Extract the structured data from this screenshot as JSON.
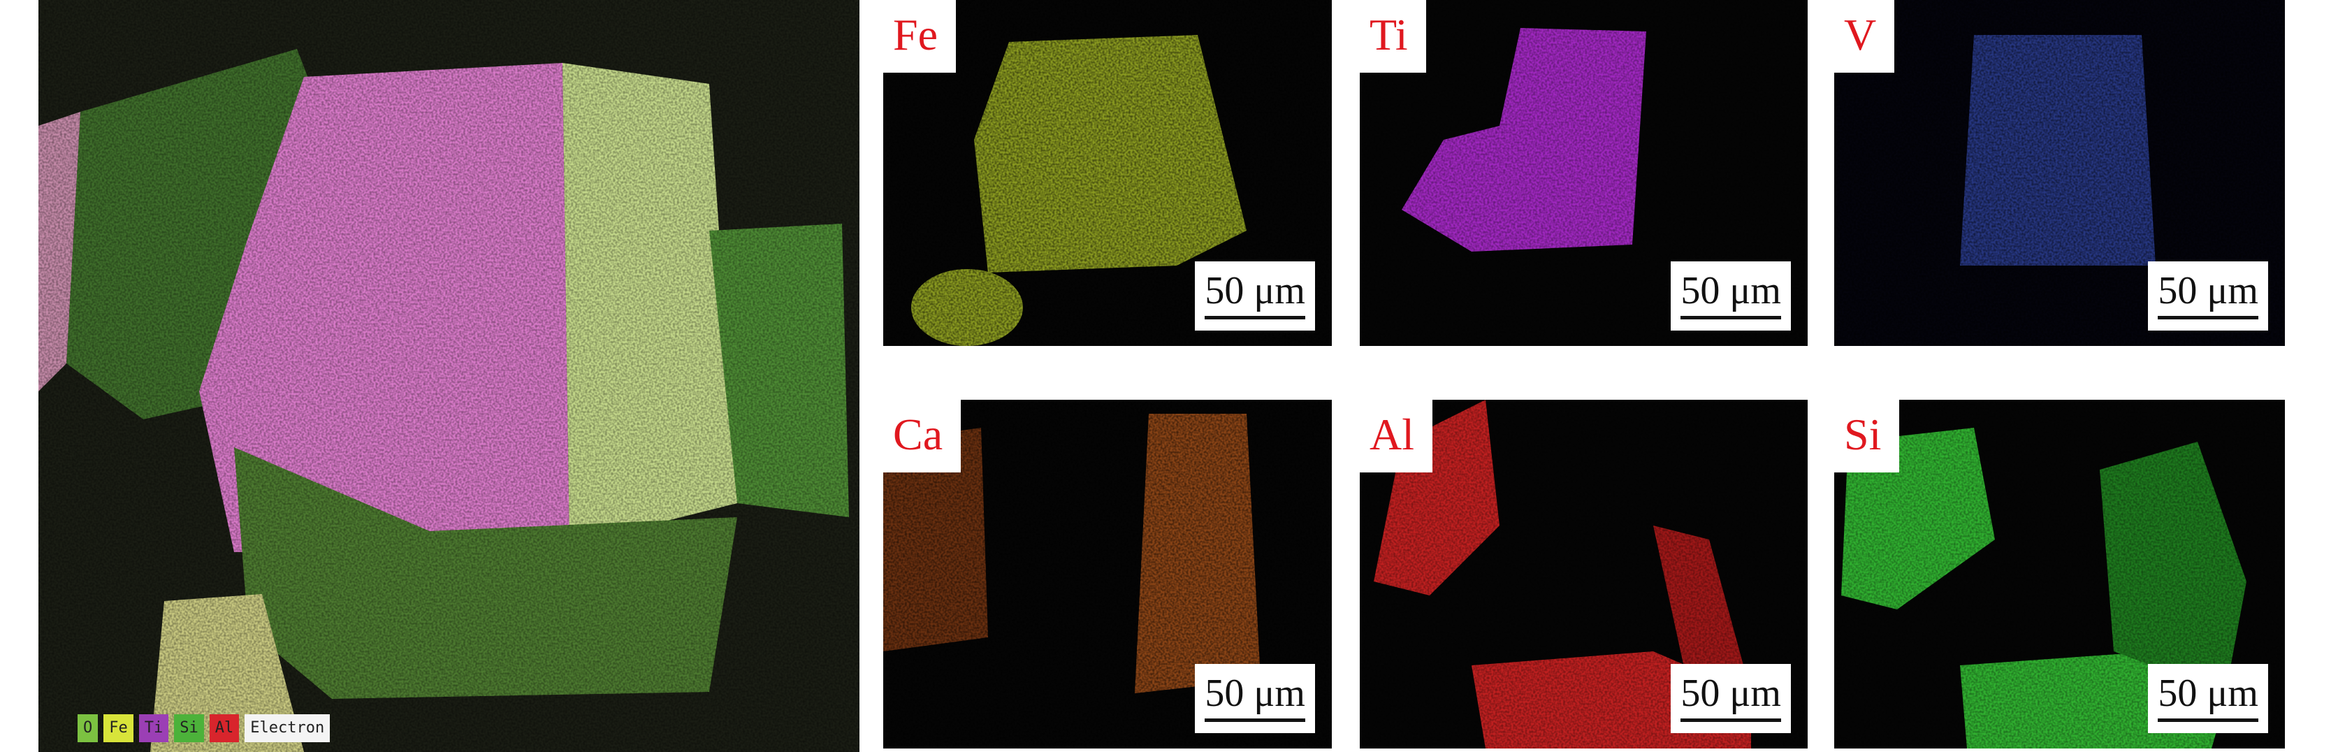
{
  "composite": {
    "legend": [
      {
        "label": "O",
        "color": "#7cc241"
      },
      {
        "label": "Fe",
        "color": "#d8e43a"
      },
      {
        "label": "Ti",
        "color": "#9b3fb5"
      },
      {
        "label": "Si",
        "color": "#4cb23a"
      },
      {
        "label": "Al",
        "color": "#d8252c"
      },
      {
        "label": "Electron",
        "color": "#f4f4f4"
      }
    ]
  },
  "maps": [
    {
      "element": "Fe",
      "scale": "50 μm",
      "color": "#b8c830"
    },
    {
      "element": "Ti",
      "scale": "50 μm",
      "color": "#b030c8"
    },
    {
      "element": "V",
      "scale": "50 μm",
      "color": "#3a50b8"
    },
    {
      "element": "Ca",
      "scale": "50 μm",
      "color": "#d06020"
    },
    {
      "element": "Al",
      "scale": "50 μm",
      "color": "#d02020"
    },
    {
      "element": "Si",
      "scale": "50 μm",
      "color": "#30c030"
    }
  ]
}
